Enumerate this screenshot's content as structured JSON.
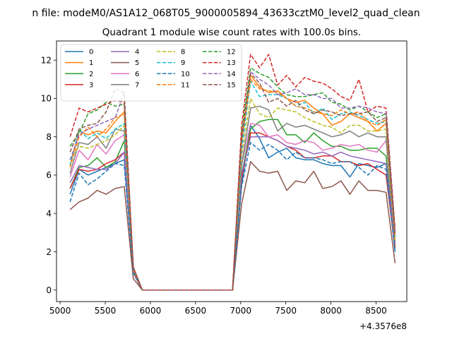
{
  "chart_data": {
    "type": "line",
    "suptitle": "n file: modeM0/AS1A12_068T05_9000005894_43633cztM0_level2_quad_clean",
    "title": "Quadrant 1 module wise count rates with 100.0s bins.",
    "xlabel": "",
    "ylabel": "",
    "x_offset_label": "+4.3576e8",
    "xlim": [
      4960,
      8840
    ],
    "ylim": [
      -0.6,
      13.0
    ],
    "x_ticks": [
      5000,
      5500,
      6000,
      6500,
      7000,
      7500,
      8000,
      8500
    ],
    "y_ticks": [
      0,
      2,
      4,
      6,
      8,
      10,
      12
    ],
    "grid": false,
    "legend_placement": "top-left",
    "legend_columns": 4,
    "x": [
      5110,
      5210,
      5310,
      5410,
      5510,
      5610,
      5710,
      5810,
      5910,
      6010,
      6110,
      6210,
      6310,
      6410,
      6510,
      6610,
      6710,
      6810,
      6910,
      7010,
      7110,
      7210,
      7310,
      7410,
      7510,
      7610,
      7710,
      7810,
      7910,
      8010,
      8110,
      8210,
      8310,
      8410,
      8510,
      8610,
      8710
    ],
    "series": [
      {
        "name": "0",
        "color": "#1f77b4",
        "dash": false,
        "values": [
          5.0,
          6.3,
          6.0,
          6.2,
          6.4,
          6.6,
          6.8,
          1.0,
          0,
          0,
          0,
          0,
          0,
          0,
          0,
          0,
          0,
          0,
          0,
          5.5,
          8.6,
          7.9,
          6.9,
          7.2,
          7.4,
          6.9,
          6.8,
          6.8,
          6.6,
          6.5,
          6.5,
          5.9,
          6.6,
          6.5,
          6.4,
          6.6,
          2.0
        ]
      },
      {
        "name": "1",
        "color": "#ff7f0e",
        "dash": false,
        "values": [
          6.5,
          8.3,
          8.1,
          8.3,
          8.2,
          8.8,
          9.3,
          1.2,
          0,
          0,
          0,
          0,
          0,
          0,
          0,
          0,
          0,
          0,
          0,
          7.8,
          11.2,
          10.6,
          10.3,
          10.4,
          10.0,
          9.8,
          9.9,
          9.5,
          9.2,
          8.6,
          8.8,
          9.2,
          9.0,
          8.8,
          8.3,
          8.7,
          2.8
        ]
      },
      {
        "name": "2",
        "color": "#2ca02c",
        "dash": false,
        "values": [
          5.3,
          6.4,
          6.5,
          6.9,
          6.4,
          6.7,
          7.8,
          1.0,
          0,
          0,
          0,
          0,
          0,
          0,
          0,
          0,
          0,
          0,
          0,
          6.0,
          8.4,
          8.8,
          8.9,
          8.9,
          8.1,
          8.1,
          7.7,
          8.2,
          7.8,
          7.5,
          7.5,
          7.3,
          7.3,
          7.4,
          7.4,
          7.0,
          2.3
        ]
      },
      {
        "name": "3",
        "color": "#d62728",
        "dash": false,
        "values": [
          5.3,
          6.3,
          6.2,
          6.3,
          6.6,
          6.8,
          7.2,
          0.9,
          0,
          0,
          0,
          0,
          0,
          0,
          0,
          0,
          0,
          0,
          0,
          5.8,
          8.2,
          8.2,
          8.0,
          7.8,
          7.5,
          7.3,
          6.9,
          6.9,
          7.0,
          7.0,
          6.7,
          6.7,
          6.5,
          6.6,
          6.3,
          6.0,
          2.2
        ]
      },
      {
        "name": "4",
        "color": "#9467bd",
        "dash": false,
        "values": [
          5.6,
          6.5,
          6.4,
          6.3,
          6.3,
          6.6,
          7.2,
          1.0,
          0,
          0,
          0,
          0,
          0,
          0,
          0,
          0,
          0,
          0,
          0,
          6.0,
          8.0,
          8.0,
          8.0,
          7.8,
          7.5,
          7.4,
          7.3,
          7.1,
          7.2,
          7.0,
          7.2,
          7.0,
          6.9,
          6.8,
          6.7,
          6.6,
          2.4
        ]
      },
      {
        "name": "5",
        "color": "#8c564b",
        "dash": false,
        "values": [
          4.2,
          4.6,
          4.8,
          5.2,
          5.0,
          5.3,
          5.4,
          0.6,
          0,
          0,
          0,
          0,
          0,
          0,
          0,
          0,
          0,
          0,
          0,
          4.5,
          6.7,
          6.2,
          6.1,
          6.2,
          5.2,
          5.7,
          5.6,
          6.2,
          5.3,
          5.4,
          5.7,
          5.0,
          5.7,
          5.2,
          5.2,
          5.1,
          1.4
        ]
      },
      {
        "name": "6",
        "color": "#e377c2",
        "dash": false,
        "values": [
          5.9,
          7.3,
          6.8,
          7.6,
          7.1,
          7.8,
          8.1,
          1.0,
          0,
          0,
          0,
          0,
          0,
          0,
          0,
          0,
          0,
          0,
          0,
          6.5,
          8.7,
          8.6,
          8.0,
          8.1,
          7.7,
          7.6,
          7.8,
          7.7,
          7.3,
          7.4,
          7.6,
          7.5,
          7.6,
          7.3,
          7.2,
          7.8,
          2.5
        ]
      },
      {
        "name": "7",
        "color": "#7f7f7f",
        "dash": false,
        "values": [
          6.1,
          7.7,
          7.6,
          8.0,
          7.4,
          8.4,
          8.3,
          1.0,
          0,
          0,
          0,
          0,
          0,
          0,
          0,
          0,
          0,
          0,
          0,
          6.5,
          9.5,
          9.6,
          9.4,
          8.3,
          8.7,
          8.5,
          8.6,
          8.4,
          8.2,
          8.0,
          8.1,
          8.3,
          8.0,
          8.2,
          8.0,
          8.0,
          2.5
        ]
      },
      {
        "name": "8",
        "color": "#bcbd22",
        "dash": true,
        "values": [
          6.8,
          7.5,
          7.4,
          7.6,
          7.8,
          8.1,
          8.6,
          1.1,
          0,
          0,
          0,
          0,
          0,
          0,
          0,
          0,
          0,
          0,
          0,
          7.0,
          10.0,
          9.2,
          9.0,
          9.5,
          9.4,
          9.3,
          9.0,
          8.8,
          8.6,
          8.5,
          8.2,
          8.6,
          8.6,
          8.3,
          8.3,
          8.4,
          2.6
        ]
      },
      {
        "name": "9",
        "color": "#17becf",
        "dash": true,
        "values": [
          6.5,
          8.4,
          7.9,
          8.2,
          7.9,
          8.4,
          8.7,
          1.1,
          0,
          0,
          0,
          0,
          0,
          0,
          0,
          0,
          0,
          0,
          0,
          7.3,
          10.9,
          10.1,
          10.2,
          10.2,
          10.0,
          9.6,
          9.8,
          9.2,
          9.5,
          8.9,
          9.2,
          9.3,
          9.1,
          8.9,
          8.7,
          8.8,
          2.7
        ]
      },
      {
        "name": "10",
        "color": "#1f77b4",
        "dash": true,
        "values": [
          4.6,
          6.1,
          5.5,
          5.8,
          6.2,
          6.6,
          6.5,
          0.9,
          0,
          0,
          0,
          0,
          0,
          0,
          0,
          0,
          0,
          0,
          0,
          5.4,
          7.7,
          7.3,
          7.6,
          7.3,
          6.8,
          7.2,
          6.9,
          6.9,
          6.8,
          6.6,
          6.7,
          6.7,
          6.4,
          6.0,
          6.5,
          6.3,
          2.0
        ]
      },
      {
        "name": "11",
        "color": "#ff7f0e",
        "dash": true,
        "values": [
          6.4,
          8.0,
          8.5,
          8.0,
          8.4,
          9.0,
          9.2,
          1.1,
          0,
          0,
          0,
          0,
          0,
          0,
          0,
          0,
          0,
          0,
          0,
          7.7,
          11.0,
          10.5,
          10.4,
          10.3,
          10.0,
          9.6,
          9.5,
          9.3,
          9.2,
          9.1,
          9.4,
          9.2,
          9.3,
          8.8,
          8.6,
          8.9,
          2.7
        ]
      },
      {
        "name": "12",
        "color": "#2ca02c",
        "dash": true,
        "values": [
          7.5,
          8.2,
          9.2,
          9.4,
          9.8,
          9.6,
          9.7,
          1.2,
          0,
          0,
          0,
          0,
          0,
          0,
          0,
          0,
          0,
          0,
          0,
          8.3,
          11.6,
          11.3,
          11.1,
          10.6,
          10.2,
          10.1,
          10.1,
          10.2,
          10.3,
          9.8,
          9.7,
          9.4,
          9.6,
          9.3,
          9.0,
          9.2,
          3.0
        ]
      },
      {
        "name": "13",
        "color": "#d62728",
        "dash": true,
        "values": [
          8.0,
          9.5,
          9.3,
          9.5,
          9.7,
          9.9,
          9.8,
          1.2,
          0,
          0,
          0,
          0,
          0,
          0,
          0,
          0,
          0,
          0,
          0,
          8.6,
          12.3,
          11.6,
          12.3,
          10.7,
          11.2,
          10.6,
          11.1,
          10.9,
          10.8,
          10.5,
          10.1,
          9.9,
          11.0,
          9.3,
          9.6,
          9.5,
          3.2
        ]
      },
      {
        "name": "14",
        "color": "#9467bd",
        "dash": true,
        "values": [
          6.8,
          8.1,
          8.4,
          8.6,
          8.8,
          9.0,
          10.3,
          1.2,
          0,
          0,
          0,
          0,
          0,
          0,
          0,
          0,
          0,
          0,
          0,
          7.8,
          11.4,
          11.0,
          10.7,
          10.2,
          10.3,
          10.5,
          10.2,
          10.2,
          10.0,
          10.0,
          9.5,
          9.5,
          9.6,
          9.5,
          9.3,
          9.2,
          3.0
        ]
      },
      {
        "name": "15",
        "color": "#8c564b",
        "dash": true,
        "values": [
          7.2,
          8.4,
          8.6,
          8.7,
          9.3,
          10.5,
          10.3,
          1.2,
          0,
          0,
          0,
          0,
          0,
          0,
          0,
          0,
          0,
          0,
          0,
          8.0,
          11.3,
          10.8,
          9.8,
          10.0,
          9.6,
          9.9,
          9.4,
          9.2,
          9.4,
          9.3,
          9.1,
          9.2,
          9.2,
          9.3,
          8.8,
          9.0,
          2.9
        ]
      }
    ]
  }
}
